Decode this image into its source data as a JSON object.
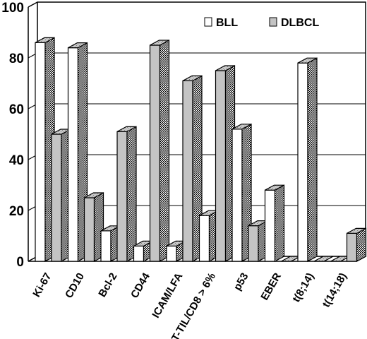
{
  "chart_data": {
    "type": "bar",
    "title": "",
    "xlabel": "",
    "ylabel": "",
    "ylim": [
      0,
      100
    ],
    "yticks": [
      0,
      20,
      40,
      60,
      80,
      100
    ],
    "grid": true,
    "legend_position": "top-right",
    "categories": [
      "Ki-67",
      "CD10",
      "Bcl-2",
      "CD44",
      "ICAM/LFA",
      "T-TIL/CD8 > 6%",
      "p53",
      "EBER",
      "t(8;14)",
      "t(14;18)"
    ],
    "series": [
      {
        "name": "BLL",
        "color": "#ffffff",
        "values": [
          86,
          84,
          12,
          6,
          6,
          18,
          52,
          28,
          78,
          0
        ]
      },
      {
        "name": "DLBCL",
        "color": "#c4c4c4",
        "values": [
          50,
          25,
          51,
          85,
          71,
          75,
          14,
          0,
          0,
          11
        ]
      }
    ]
  }
}
